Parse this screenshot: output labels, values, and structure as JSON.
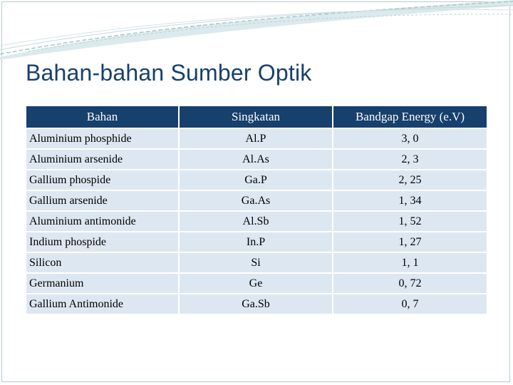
{
  "slide": {
    "title": "Bahan-bahan Sumber Optik"
  },
  "table": {
    "headers": [
      "Bahan",
      "Singkatan",
      "Bandgap Energy  (e.V)"
    ],
    "rows": [
      [
        "Aluminium phosphide",
        "Al.P",
        "3, 0"
      ],
      [
        "Aluminium arsenide",
        "Al.As",
        "2, 3"
      ],
      [
        "Gallium phospide",
        "Ga.P",
        "2, 25"
      ],
      [
        "Gallium arsenide",
        "Ga.As",
        "1, 34"
      ],
      [
        "Aluminium antimonide",
        "Al.Sb",
        "1, 52"
      ],
      [
        "Indium phospide",
        "In.P",
        "1, 27"
      ],
      [
        "Silicon",
        "Si",
        "1, 1"
      ],
      [
        "Germanium",
        "Ge",
        "0, 72"
      ],
      [
        "Gallium Antimonide",
        "Ga.Sb",
        "0, 7"
      ]
    ]
  },
  "colors": {
    "title": "#17406d",
    "header_bg": "#17406d",
    "row_bg": "#dde7f1",
    "swoosh_fill": "#c5dde0",
    "swoosh_line": "#9fc0c4"
  }
}
